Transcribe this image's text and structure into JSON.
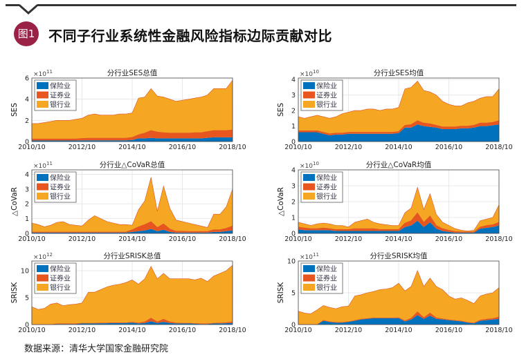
{
  "header": {
    "badge": "图1",
    "title": "不同子行业系统性金融风险指标边际贡献对比"
  },
  "source": "数据来源：清华大学国家金融研究院",
  "colors": {
    "insurance": "#0072BD",
    "securities": "#E8561F",
    "banking": "#F5A623",
    "badge": "#9b2247"
  },
  "legend": [
    "保险业",
    "证券业",
    "银行业"
  ],
  "chart_data": [
    {
      "type": "area",
      "stacked": true,
      "title": "分行业SES总值",
      "ylabel": "SES",
      "multiplier": "×10^11",
      "exponent": "11",
      "ylim": [
        0,
        6
      ],
      "yticks": [
        0,
        2,
        4,
        6
      ],
      "grid": true,
      "legend_position": "top-left",
      "x": [
        "2010/10",
        "2011/01",
        "2011/04",
        "2011/07",
        "2011/10",
        "2012/01",
        "2012/04",
        "2012/07",
        "2012/10",
        "2013/01",
        "2013/04",
        "2013/07",
        "2013/10",
        "2014/01",
        "2014/04",
        "2014/07",
        "2014/10",
        "2015/01",
        "2015/04",
        "2015/07",
        "2015/10",
        "2016/01",
        "2016/04",
        "2016/07",
        "2016/10",
        "2017/01",
        "2017/04",
        "2017/07",
        "2017/10",
        "2018/01",
        "2018/04",
        "2018/07",
        "2018/10"
      ],
      "xticks": [
        "2010/10",
        "2012/10",
        "2014/10",
        "2016/10",
        "2018/10"
      ],
      "series": [
        {
          "name": "保险业",
          "values": [
            0.1,
            0.1,
            0.1,
            0.1,
            0.1,
            0.1,
            0.1,
            0.1,
            0.12,
            0.12,
            0.12,
            0.12,
            0.12,
            0.12,
            0.12,
            0.12,
            0.15,
            0.3,
            0.3,
            0.35,
            0.3,
            0.3,
            0.3,
            0.3,
            0.3,
            0.3,
            0.3,
            0.3,
            0.35,
            0.4,
            0.4,
            0.4,
            0.4
          ]
        },
        {
          "name": "证券业",
          "values": [
            0.15,
            0.15,
            0.15,
            0.15,
            0.15,
            0.15,
            0.15,
            0.15,
            0.18,
            0.2,
            0.2,
            0.2,
            0.2,
            0.2,
            0.2,
            0.2,
            0.25,
            0.35,
            0.5,
            0.7,
            0.6,
            0.55,
            0.5,
            0.5,
            0.5,
            0.5,
            0.55,
            0.55,
            0.6,
            0.65,
            0.65,
            0.65,
            0.7
          ]
        },
        {
          "name": "银行业",
          "values": [
            1.45,
            1.45,
            1.55,
            1.65,
            1.75,
            1.75,
            1.75,
            1.85,
            1.9,
            2.18,
            2.28,
            2.18,
            2.18,
            2.18,
            2.28,
            2.28,
            2.3,
            3.45,
            3.4,
            3.95,
            3.4,
            3.35,
            3.2,
            3.0,
            3.1,
            3.2,
            3.25,
            3.35,
            3.45,
            3.95,
            3.95,
            3.95,
            4.7
          ]
        }
      ]
    },
    {
      "type": "area",
      "stacked": true,
      "title": "分行业SES均值",
      "ylabel": "SES",
      "multiplier": "×10^10",
      "exponent": "10",
      "ylim": [
        0,
        4.1
      ],
      "yticks": [
        0,
        1,
        2,
        3,
        4
      ],
      "grid": true,
      "legend_position": "top-left",
      "x": [
        "2010/10",
        "2011/01",
        "2011/04",
        "2011/07",
        "2011/10",
        "2012/01",
        "2012/04",
        "2012/07",
        "2012/10",
        "2013/01",
        "2013/04",
        "2013/07",
        "2013/10",
        "2014/01",
        "2014/04",
        "2014/07",
        "2014/10",
        "2015/01",
        "2015/04",
        "2015/07",
        "2015/10",
        "2016/01",
        "2016/04",
        "2016/07",
        "2016/10",
        "2017/01",
        "2017/04",
        "2017/07",
        "2017/10",
        "2018/01",
        "2018/04",
        "2018/07",
        "2018/10"
      ],
      "xticks": [
        "2010/10",
        "2012/10",
        "2014/10",
        "2016/10",
        "2018/10"
      ],
      "series": [
        {
          "name": "保险业",
          "values": [
            0.6,
            0.6,
            0.6,
            0.6,
            0.5,
            0.4,
            0.45,
            0.45,
            0.5,
            0.5,
            0.5,
            0.5,
            0.5,
            0.5,
            0.5,
            0.5,
            0.55,
            0.9,
            0.9,
            1.1,
            1.0,
            0.95,
            0.9,
            0.8,
            0.8,
            0.8,
            0.85,
            0.85,
            0.9,
            1.0,
            1.0,
            1.05,
            1.1
          ]
        },
        {
          "name": "证券业",
          "values": [
            0.1,
            0.1,
            0.1,
            0.1,
            0.1,
            0.1,
            0.1,
            0.1,
            0.1,
            0.1,
            0.1,
            0.1,
            0.1,
            0.1,
            0.1,
            0.1,
            0.1,
            0.15,
            0.2,
            0.25,
            0.2,
            0.2,
            0.15,
            0.15,
            0.15,
            0.15,
            0.15,
            0.15,
            0.15,
            0.2,
            0.2,
            0.2,
            0.25
          ]
        },
        {
          "name": "银行业",
          "values": [
            0.9,
            0.8,
            0.9,
            1.0,
            1.0,
            1.0,
            1.05,
            1.25,
            1.3,
            1.4,
            1.4,
            1.5,
            1.5,
            1.4,
            1.5,
            1.5,
            1.55,
            2.35,
            2.4,
            2.55,
            2.1,
            2.05,
            1.95,
            1.65,
            1.45,
            1.35,
            1.3,
            1.5,
            1.55,
            1.6,
            1.7,
            1.65,
            2.05
          ]
        }
      ]
    },
    {
      "type": "area",
      "stacked": true,
      "title": "分行业△CoVaR总值",
      "ylabel": "△CoVaR",
      "multiplier": "×10^11",
      "exponent": "11",
      "ylim": [
        0,
        4.3
      ],
      "yticks": [
        0,
        1,
        2,
        3,
        4
      ],
      "grid": true,
      "legend_position": "top-left",
      "x": [
        "2010/10",
        "2011/01",
        "2011/04",
        "2011/07",
        "2011/10",
        "2012/01",
        "2012/04",
        "2012/07",
        "2012/10",
        "2013/01",
        "2013/04",
        "2013/07",
        "2013/10",
        "2014/01",
        "2014/04",
        "2014/07",
        "2014/10",
        "2015/01",
        "2015/04",
        "2015/07",
        "2015/10",
        "2016/01",
        "2016/04",
        "2016/07",
        "2016/10",
        "2017/01",
        "2017/04",
        "2017/07",
        "2017/10",
        "2018/01",
        "2018/04",
        "2018/07",
        "2018/10"
      ],
      "xticks": [
        "2010/10",
        "2012/10",
        "2014/10",
        "2016/10",
        "2018/10"
      ],
      "series": [
        {
          "name": "保险业",
          "values": [
            0.05,
            0.05,
            0.05,
            0.05,
            0.05,
            0.05,
            0.05,
            0.05,
            0.05,
            0.05,
            0.05,
            0.05,
            0.05,
            0.05,
            0.05,
            0.05,
            0.1,
            0.15,
            0.2,
            0.3,
            0.15,
            0.25,
            0.1,
            0.05,
            0.05,
            0.05,
            0.05,
            0.05,
            0.05,
            0.1,
            0.1,
            0.15,
            0.2
          ]
        },
        {
          "name": "证券业",
          "values": [
            0.05,
            0.05,
            0.05,
            0.05,
            0.05,
            0.05,
            0.05,
            0.05,
            0.05,
            0.05,
            0.05,
            0.05,
            0.05,
            0.05,
            0.05,
            0.05,
            0.15,
            0.3,
            0.4,
            0.5,
            0.25,
            0.4,
            0.2,
            0.1,
            0.1,
            0.08,
            0.08,
            0.08,
            0.08,
            0.15,
            0.15,
            0.2,
            0.3
          ]
        },
        {
          "name": "银行业",
          "values": [
            0.6,
            0.5,
            0.35,
            0.45,
            0.65,
            0.7,
            0.5,
            0.45,
            0.4,
            0.8,
            1.1,
            0.9,
            0.7,
            0.6,
            0.5,
            0.5,
            0.3,
            1.15,
            1.6,
            3.0,
            1.1,
            2.55,
            1.4,
            0.75,
            0.65,
            0.57,
            0.47,
            0.37,
            0.27,
            1.05,
            1.05,
            1.45,
            2.5
          ]
        }
      ]
    },
    {
      "type": "area",
      "stacked": true,
      "title": "分行业△CoVaR均值",
      "ylabel": "△CoVaR",
      "multiplier": "×10^10",
      "exponent": "10",
      "ylim": [
        0,
        4
      ],
      "yticks": [
        0,
        1,
        2,
        3,
        4
      ],
      "grid": true,
      "legend_position": "top-left",
      "x": [
        "2010/10",
        "2011/01",
        "2011/04",
        "2011/07",
        "2011/10",
        "2012/01",
        "2012/04",
        "2012/07",
        "2012/10",
        "2013/01",
        "2013/04",
        "2013/07",
        "2013/10",
        "2014/01",
        "2014/04",
        "2014/07",
        "2014/10",
        "2015/01",
        "2015/04",
        "2015/07",
        "2015/10",
        "2016/01",
        "2016/04",
        "2016/07",
        "2016/10",
        "2017/01",
        "2017/04",
        "2017/07",
        "2017/10",
        "2018/01",
        "2018/04",
        "2018/07",
        "2018/10"
      ],
      "xticks": [
        "2010/10",
        "2012/10",
        "2014/10",
        "2016/10",
        "2018/10"
      ],
      "series": [
        {
          "name": "保险业",
          "values": [
            0.25,
            0.2,
            0.2,
            0.2,
            0.2,
            0.2,
            0.15,
            0.15,
            0.15,
            0.15,
            0.15,
            0.15,
            0.15,
            0.15,
            0.15,
            0.15,
            0.15,
            0.4,
            0.5,
            0.8,
            0.4,
            0.7,
            0.3,
            0.15,
            0.1,
            0.05,
            0.05,
            0.05,
            0.05,
            0.3,
            0.35,
            0.4,
            0.5
          ]
        },
        {
          "name": "证券业",
          "values": [
            0.15,
            0.15,
            0.1,
            0.1,
            0.15,
            0.1,
            0.1,
            0.1,
            0.1,
            0.15,
            0.15,
            0.15,
            0.15,
            0.1,
            0.1,
            0.1,
            0.1,
            0.25,
            0.3,
            0.5,
            0.3,
            0.4,
            0.2,
            0.15,
            0.1,
            0.08,
            0.05,
            0.05,
            0.05,
            0.1,
            0.15,
            0.15,
            0.2
          ]
        },
        {
          "name": "银行业",
          "values": [
            0.3,
            0.25,
            0.2,
            0.3,
            0.3,
            0.3,
            0.25,
            0.25,
            0.15,
            0.4,
            0.5,
            0.6,
            0.4,
            0.35,
            0.3,
            0.25,
            0.25,
            0.65,
            0.8,
            1.6,
            0.8,
            1.4,
            0.7,
            0.4,
            0.3,
            0.17,
            0.1,
            0.05,
            0.1,
            0.4,
            0.4,
            0.45,
            1.1
          ]
        }
      ]
    },
    {
      "type": "area",
      "stacked": true,
      "title": "分行业SRISK总值",
      "ylabel": "SRISK",
      "multiplier": "×10^12",
      "exponent": "12",
      "ylim": [
        0,
        11.8
      ],
      "yticks": [
        0,
        5,
        10
      ],
      "grid": true,
      "legend_position": "top-left",
      "x": [
        "2010/10",
        "2011/01",
        "2011/04",
        "2011/07",
        "2011/10",
        "2012/01",
        "2012/04",
        "2012/07",
        "2012/10",
        "2013/01",
        "2013/04",
        "2013/07",
        "2013/10",
        "2014/01",
        "2014/04",
        "2014/07",
        "2014/10",
        "2015/01",
        "2015/04",
        "2015/07",
        "2015/10",
        "2016/01",
        "2016/04",
        "2016/07",
        "2016/10",
        "2017/01",
        "2017/04",
        "2017/07",
        "2017/10",
        "2018/01",
        "2018/04",
        "2018/07",
        "2018/10"
      ],
      "xticks": [
        "2010/10",
        "2012/10",
        "2014/10",
        "2016/10",
        "2018/10"
      ],
      "series": [
        {
          "name": "保险业",
          "values": [
            0,
            0,
            0,
            0,
            0.1,
            0.1,
            0.1,
            0.1,
            0.2,
            0.2,
            0.2,
            0.25,
            0.25,
            0.3,
            0.3,
            0.3,
            0.35,
            0.2,
            0.3,
            0.6,
            0.3,
            0.5,
            0.3,
            0.2,
            0.2,
            0.2,
            0.15,
            0.1,
            0.1,
            0.2,
            0.2,
            0.25,
            0.3
          ]
        },
        {
          "name": "证券业",
          "values": [
            0,
            0,
            0,
            0,
            0.05,
            0.05,
            0.05,
            0.05,
            0.05,
            0.05,
            0.05,
            0.05,
            0.05,
            0.05,
            0.05,
            0.05,
            0.1,
            0.1,
            0.2,
            0.6,
            0.2,
            0.5,
            0.2,
            0.1,
            0.05,
            0.05,
            0.05,
            0.05,
            0.05,
            0.05,
            0.1,
            0.1,
            0.2
          ]
        },
        {
          "name": "银行业",
          "values": [
            3.3,
            2.8,
            3.0,
            3.8,
            3.85,
            3.35,
            3.55,
            3.65,
            3.75,
            5.75,
            5.75,
            6.2,
            6.7,
            6.95,
            7.15,
            7.45,
            7.85,
            7.2,
            8.0,
            9.6,
            8.0,
            8.5,
            8.0,
            8.2,
            8.25,
            8.25,
            8.1,
            8.45,
            7.85,
            8.75,
            9.2,
            9.65,
            10.5
          ]
        }
      ]
    },
    {
      "type": "area",
      "stacked": true,
      "title": "分行业SRISK均值",
      "ylabel": "SRISK",
      "multiplier": "×10^11",
      "exponent": "11",
      "ylim": [
        0,
        10
      ],
      "yticks": [
        0,
        5,
        10
      ],
      "grid": true,
      "legend_position": "top-left",
      "x": [
        "2010/10",
        "2011/01",
        "2011/04",
        "2011/07",
        "2011/10",
        "2012/01",
        "2012/04",
        "2012/07",
        "2012/10",
        "2013/01",
        "2013/04",
        "2013/07",
        "2013/10",
        "2014/01",
        "2014/04",
        "2014/07",
        "2014/10",
        "2015/01",
        "2015/04",
        "2015/07",
        "2015/10",
        "2016/01",
        "2016/04",
        "2016/07",
        "2016/10",
        "2017/01",
        "2017/04",
        "2017/07",
        "2017/10",
        "2018/01",
        "2018/04",
        "2018/07",
        "2018/10"
      ],
      "xticks": [
        "2010/10",
        "2012/10",
        "2014/10",
        "2016/10",
        "2018/10"
      ],
      "series": [
        {
          "name": "保险业",
          "values": [
            0,
            0,
            0,
            0,
            0.6,
            0.4,
            0.3,
            0.3,
            0.4,
            0.6,
            0.8,
            0.9,
            1.0,
            1.0,
            1.0,
            1.0,
            1.0,
            0.5,
            0.8,
            1.5,
            0.9,
            1.4,
            0.9,
            0.8,
            0.7,
            0.6,
            0.5,
            0.3,
            0.2,
            0.6,
            0.7,
            0.8,
            0.9
          ]
        },
        {
          "name": "证券业",
          "values": [
            0,
            0,
            0,
            0,
            0.05,
            0.05,
            0.05,
            0.05,
            0.05,
            0.05,
            0.05,
            0.05,
            0.05,
            0.05,
            0.05,
            0.05,
            0.1,
            0.1,
            0.2,
            0.5,
            0.2,
            0.4,
            0.15,
            0.1,
            0.05,
            0.05,
            0.05,
            0.05,
            0.05,
            0.1,
            0.15,
            0.15,
            0.3
          ]
        },
        {
          "name": "银行业",
          "values": [
            2.1,
            1.8,
            1.7,
            2.3,
            2.35,
            2.25,
            2.15,
            2.45,
            2.45,
            3.85,
            3.85,
            4.05,
            4.15,
            4.45,
            4.55,
            4.75,
            5.4,
            4.7,
            5.0,
            6.5,
            4.9,
            5.5,
            4.95,
            4.6,
            3.75,
            3.35,
            3.65,
            3.45,
            3.05,
            3.8,
            3.95,
            4.05,
            4.6
          ]
        }
      ]
    }
  ]
}
